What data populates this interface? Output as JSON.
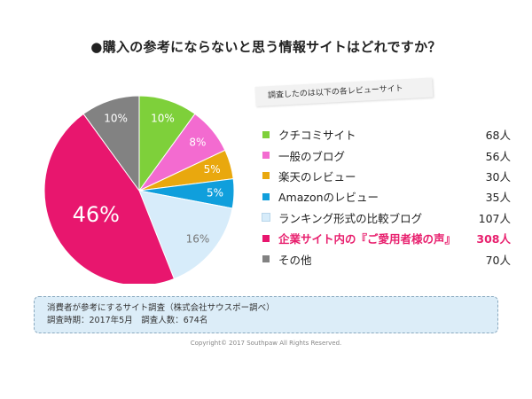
{
  "title": "●購入の参考にならないと思う情報サイトはどれですか？",
  "tag_note": "調査したのは以下の各レビューサイト",
  "chart_data": {
    "type": "pie",
    "title": "●購入の参考にならないと思う情報サイトはどれですか？",
    "slices": [
      {
        "label": "クチコミサイト",
        "count": "68人",
        "percent": 10,
        "pie_label": "10%",
        "color": "#7ed03a"
      },
      {
        "label": "一般のブログ",
        "count": "56人",
        "percent": 8,
        "pie_label": "8%",
        "color": "#f36bd0"
      },
      {
        "label": "楽天のレビュー",
        "count": "30人",
        "percent": 5,
        "pie_label": "5%",
        "color": "#e9a80e"
      },
      {
        "label": "Amazonのレビュー",
        "count": "35人",
        "percent": 5,
        "pie_label": "5%",
        "color": "#109fdc"
      },
      {
        "label": "ランキング形式の比較ブログ",
        "count": "107人",
        "percent": 16,
        "pie_label": "16%",
        "color": "#d7ecfa"
      },
      {
        "label": "企業サイト内の『ご愛用者様の声』",
        "count": "308人",
        "percent": 46,
        "pie_label": "46%",
        "color": "#e8166e"
      },
      {
        "label": "その他",
        "count": "70人",
        "percent": 10,
        "pie_label": "10%",
        "color": "#828282"
      }
    ],
    "highlight_index": 5
  },
  "footnote": {
    "line1": "消費者が参考にするサイト調査（株式会社サウスポー調べ）",
    "line2": "調査時期：2017年5月　調査人数：674名"
  },
  "copyright": "Copyright© 2017 Southpaw All Rights Reserved."
}
